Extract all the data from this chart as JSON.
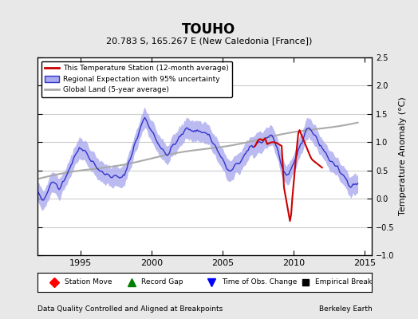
{
  "title": "TOUHO",
  "subtitle": "20.783 S, 165.267 E (New Caledonia [France])",
  "ylabel": "Temperature Anomaly (°C)",
  "xlim": [
    1992.0,
    2015.5
  ],
  "ylim": [
    -1.0,
    2.5
  ],
  "yticks": [
    -1.0,
    -0.5,
    0.0,
    0.5,
    1.0,
    1.5,
    2.0,
    2.5
  ],
  "xticks": [
    1995,
    2000,
    2005,
    2010,
    2015
  ],
  "footer_left": "Data Quality Controlled and Aligned at Breakpoints",
  "footer_right": "Berkeley Earth",
  "bg_color": "#e8e8e8",
  "plot_bg_color": "#ffffff",
  "grid_color": "#cccccc",
  "regional_color": "#3333cc",
  "regional_fill_color": "#aaaaee",
  "station_color": "#cc0000",
  "global_color": "#aaaaaa",
  "legend_entries": [
    "This Temperature Station (12-month average)",
    "Regional Expectation with 95% uncertainty",
    "Global Land (5-year average)"
  ]
}
